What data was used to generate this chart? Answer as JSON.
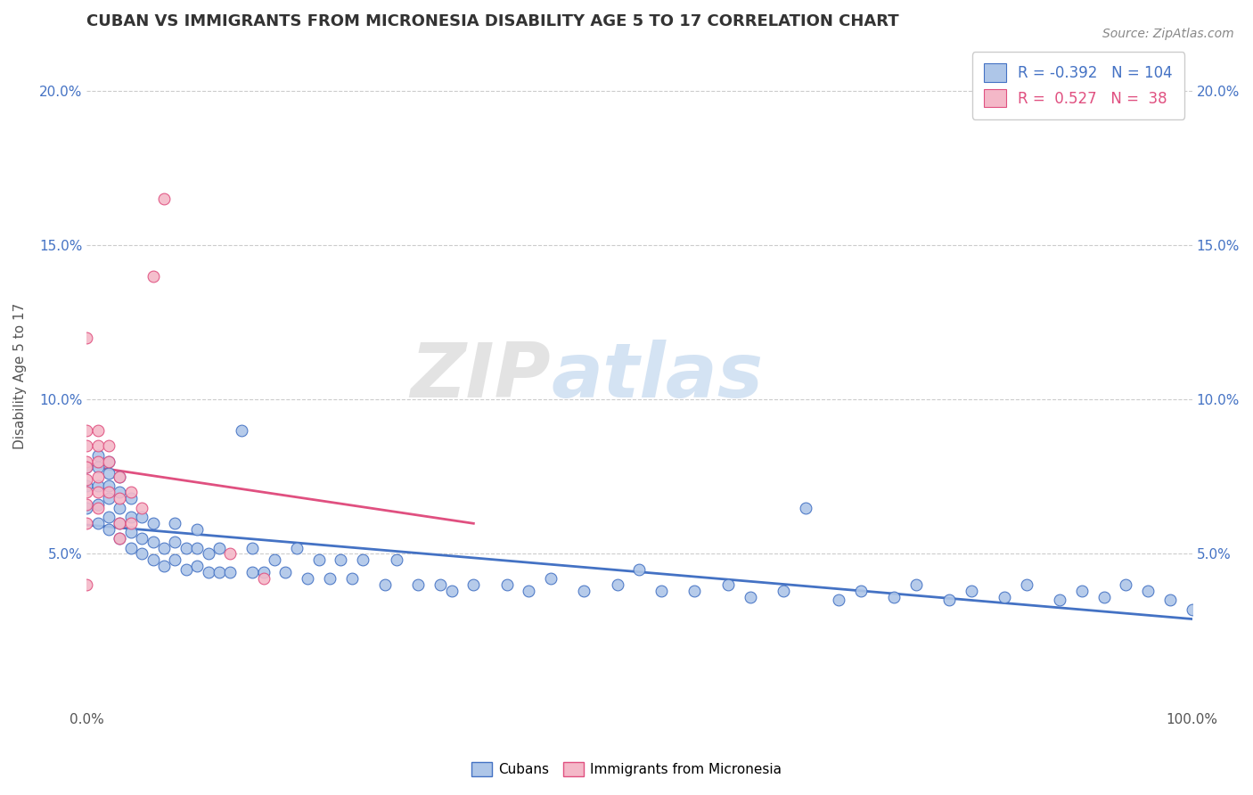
{
  "title": "CUBAN VS IMMIGRANTS FROM MICRONESIA DISABILITY AGE 5 TO 17 CORRELATION CHART",
  "source": "Source: ZipAtlas.com",
  "ylabel": "Disability Age 5 to 17",
  "xlim": [
    0.0,
    1.0
  ],
  "ylim": [
    0.0,
    0.215
  ],
  "xtick_positions": [
    0.0,
    1.0
  ],
  "xtick_labels": [
    "0.0%",
    "100.0%"
  ],
  "ytick_positions": [
    0.05,
    0.1,
    0.15,
    0.2
  ],
  "ytick_labels": [
    "5.0%",
    "10.0%",
    "15.0%",
    "20.0%"
  ],
  "R_cubans": -0.392,
  "N_cubans": 104,
  "R_micronesia": 0.527,
  "N_micronesia": 38,
  "color_cubans": "#aec6e8",
  "color_micronesia": "#f4b8c8",
  "line_color_cubans": "#4472c4",
  "line_color_micronesia": "#e05080",
  "watermark_zip": "ZIP",
  "watermark_atlas": "atlas",
  "background_color": "#ffffff",
  "cubans_x": [
    0.0,
    0.0,
    0.0,
    0.01,
    0.01,
    0.01,
    0.01,
    0.01,
    0.02,
    0.02,
    0.02,
    0.02,
    0.02,
    0.02,
    0.03,
    0.03,
    0.03,
    0.03,
    0.03,
    0.04,
    0.04,
    0.04,
    0.04,
    0.05,
    0.05,
    0.05,
    0.06,
    0.06,
    0.06,
    0.07,
    0.07,
    0.08,
    0.08,
    0.08,
    0.09,
    0.09,
    0.1,
    0.1,
    0.1,
    0.11,
    0.11,
    0.12,
    0.12,
    0.13,
    0.14,
    0.15,
    0.15,
    0.16,
    0.17,
    0.18,
    0.19,
    0.2,
    0.21,
    0.22,
    0.23,
    0.24,
    0.25,
    0.27,
    0.28,
    0.3,
    0.32,
    0.33,
    0.35,
    0.38,
    0.4,
    0.42,
    0.45,
    0.48,
    0.5,
    0.52,
    0.55,
    0.58,
    0.6,
    0.63,
    0.65,
    0.68,
    0.7,
    0.73,
    0.75,
    0.78,
    0.8,
    0.83,
    0.85,
    0.88,
    0.9,
    0.92,
    0.94,
    0.96,
    0.98,
    1.0
  ],
  "cubans_y": [
    0.065,
    0.072,
    0.078,
    0.06,
    0.066,
    0.072,
    0.078,
    0.082,
    0.058,
    0.062,
    0.068,
    0.072,
    0.076,
    0.08,
    0.055,
    0.06,
    0.065,
    0.07,
    0.075,
    0.052,
    0.057,
    0.062,
    0.068,
    0.05,
    0.055,
    0.062,
    0.048,
    0.054,
    0.06,
    0.046,
    0.052,
    0.048,
    0.054,
    0.06,
    0.045,
    0.052,
    0.046,
    0.052,
    0.058,
    0.044,
    0.05,
    0.044,
    0.052,
    0.044,
    0.09,
    0.044,
    0.052,
    0.044,
    0.048,
    0.044,
    0.052,
    0.042,
    0.048,
    0.042,
    0.048,
    0.042,
    0.048,
    0.04,
    0.048,
    0.04,
    0.04,
    0.038,
    0.04,
    0.04,
    0.038,
    0.042,
    0.038,
    0.04,
    0.045,
    0.038,
    0.038,
    0.04,
    0.036,
    0.038,
    0.065,
    0.035,
    0.038,
    0.036,
    0.04,
    0.035,
    0.038,
    0.036,
    0.04,
    0.035,
    0.038,
    0.036,
    0.04,
    0.038,
    0.035,
    0.032
  ],
  "micronesia_x": [
    0.0,
    0.0,
    0.0,
    0.0,
    0.0,
    0.0,
    0.0,
    0.0,
    0.0,
    0.0,
    0.01,
    0.01,
    0.01,
    0.01,
    0.01,
    0.01,
    0.02,
    0.02,
    0.02,
    0.03,
    0.03,
    0.04,
    0.05,
    0.06,
    0.07,
    0.13,
    0.16,
    0.03,
    0.03,
    0.04
  ],
  "micronesia_y": [
    0.12,
    0.09,
    0.085,
    0.08,
    0.078,
    0.074,
    0.07,
    0.066,
    0.06,
    0.04,
    0.09,
    0.085,
    0.08,
    0.075,
    0.07,
    0.065,
    0.085,
    0.08,
    0.07,
    0.075,
    0.068,
    0.07,
    0.065,
    0.14,
    0.165,
    0.05,
    0.042,
    0.06,
    0.055,
    0.06
  ]
}
